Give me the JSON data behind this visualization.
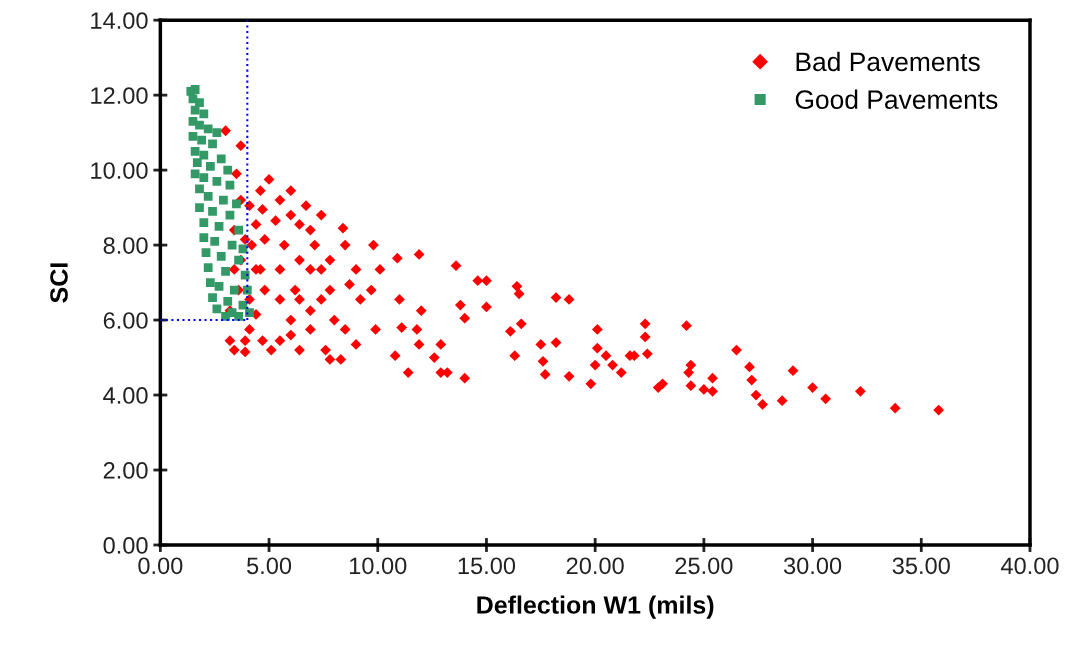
{
  "chart_data": {
    "type": "scatter",
    "xlabel": "Deflection W1 (mils)",
    "ylabel": "SCI",
    "xlim": [
      0,
      40
    ],
    "ylim": [
      0,
      14
    ],
    "xticks": [
      {
        "value": 0,
        "label": "0.00"
      },
      {
        "value": 5,
        "label": "5.00"
      },
      {
        "value": 10,
        "label": "10.00"
      },
      {
        "value": 15,
        "label": "15.00"
      },
      {
        "value": 20,
        "label": "20.00"
      },
      {
        "value": 25,
        "label": "25.00"
      },
      {
        "value": 30,
        "label": "30.00"
      },
      {
        "value": 35,
        "label": "35.00"
      },
      {
        "value": 40,
        "label": "40.00"
      }
    ],
    "yticks": [
      {
        "value": 0,
        "label": "0.00"
      },
      {
        "value": 2,
        "label": "2.00"
      },
      {
        "value": 4,
        "label": "4.00"
      },
      {
        "value": 6,
        "label": "6.00"
      },
      {
        "value": 8,
        "label": "8.00"
      },
      {
        "value": 10,
        "label": "10.00"
      },
      {
        "value": 12,
        "label": "12.00"
      },
      {
        "value": 14,
        "label": "14.00"
      }
    ],
    "grid": false,
    "legend": "top right",
    "ref_lines": [
      {
        "axis": "x",
        "value": 4,
        "color": "#0000ff",
        "line_style": "dotted"
      },
      {
        "axis": "y",
        "value": 6,
        "color": "#0000ff",
        "line_style": "dotted"
      }
    ],
    "series": [
      {
        "name": "Bad Pavements",
        "color": "#ff0000",
        "marker": "diamond",
        "x": [
          35.8,
          33.8,
          32.2,
          30.6,
          30.0,
          29.1,
          28.6,
          27.7,
          27.4,
          27.2,
          27.1,
          26.5,
          25.4,
          25.4,
          25.0,
          24.4,
          24.3,
          24.2,
          24.4,
          23.1,
          22.9,
          22.4,
          22.3,
          22.3,
          21.8,
          21.2,
          21.6,
          20.8,
          20.5,
          20.1,
          20.1,
          19.8,
          20.0,
          18.8,
          18.8,
          18.2,
          18.2,
          17.6,
          17.7,
          17.5,
          16.6,
          16.4,
          16.5,
          16.1,
          16.3,
          15.0,
          15.0,
          14.6,
          14.0,
          13.8,
          13.6,
          12.9,
          12.6,
          11.9,
          11.8,
          12.0,
          11.9,
          10.9,
          11.0,
          11.1,
          11.4,
          10.8,
          12.9,
          13.2,
          14.0,
          9.9,
          9.8,
          9.2,
          9.0,
          8.4,
          8.7,
          8.0,
          7.8,
          8.3,
          7.6,
          8.5,
          7.4,
          6.9,
          6.4,
          6.2,
          6.0,
          5.5,
          5.1,
          4.7,
          4.4,
          4.1,
          3.9,
          3.4,
          3.9,
          5.0,
          5.5,
          6.0,
          6.4,
          5.3,
          4.6,
          4.8,
          5.7,
          7.1,
          6.9,
          7.4,
          5.5,
          4.6,
          4.8,
          6.4,
          6.9,
          5.5,
          7.8,
          4.4,
          3.7,
          3.0,
          3.5,
          3.7,
          3.7,
          3.6,
          3.2,
          6.4,
          6.9,
          6.0,
          9.7,
          10.1,
          7.8,
          8.5,
          9.0,
          4.1,
          4.4,
          4.2,
          4.1,
          4.7,
          6.0,
          6.7,
          7.4,
          3.9,
          3.4,
          3.4,
          3.2
        ],
        "values": [
          3.6,
          3.65,
          4.1,
          3.9,
          4.2,
          4.65,
          3.85,
          3.75,
          4.0,
          4.4,
          4.75,
          5.2,
          4.1,
          4.45,
          4.15,
          4.25,
          4.6,
          5.85,
          4.8,
          4.3,
          4.2,
          5.1,
          5.9,
          5.55,
          5.05,
          4.6,
          5.05,
          4.8,
          5.05,
          5.25,
          5.75,
          4.3,
          4.8,
          4.5,
          6.55,
          6.6,
          5.4,
          4.9,
          4.55,
          5.35,
          5.9,
          6.9,
          6.7,
          5.7,
          5.05,
          6.35,
          7.05,
          7.05,
          6.05,
          6.4,
          7.45,
          5.35,
          5.0,
          5.35,
          5.75,
          6.25,
          7.75,
          7.65,
          6.55,
          5.8,
          4.6,
          5.05,
          4.6,
          4.6,
          4.45,
          5.75,
          8.0,
          6.55,
          5.35,
          8.45,
          6.95,
          6.0,
          4.95,
          4.95,
          5.2,
          5.75,
          6.55,
          7.35,
          7.6,
          6.8,
          6.0,
          5.45,
          5.2,
          5.45,
          6.15,
          5.75,
          5.45,
          5.2,
          5.15,
          9.75,
          9.2,
          8.8,
          8.55,
          8.65,
          9.45,
          8.15,
          8.0,
          8.0,
          8.4,
          7.35,
          7.35,
          7.35,
          6.8,
          6.55,
          6.25,
          6.55,
          6.8,
          8.55,
          10.65,
          11.05,
          9.9,
          9.2,
          7.6,
          6.8,
          6.25,
          5.2,
          5.75,
          5.6,
          6.8,
          7.35,
          7.6,
          8.0,
          7.35,
          6.55,
          7.35,
          8.0,
          9.05,
          8.95,
          9.45,
          9.05,
          8.8,
          8.15,
          8.4,
          7.35,
          5.45
        ]
      },
      {
        "name": "Good Pavements",
        "color": "#339966",
        "marker": "square",
        "x": [
          1.4,
          1.6,
          1.5,
          1.8,
          1.6,
          2.0,
          1.5,
          1.8,
          2.2,
          2.6,
          1.5,
          1.9,
          2.4,
          1.6,
          2.0,
          2.8,
          1.7,
          2.3,
          3.1,
          1.6,
          2.0,
          2.6,
          3.2,
          1.8,
          2.2,
          2.9,
          3.5,
          1.8,
          2.4,
          3.2,
          2.0,
          2.7,
          3.6,
          2.0,
          2.5,
          3.3,
          3.8,
          2.1,
          2.8,
          3.6,
          2.2,
          3.0,
          3.9,
          2.3,
          2.7,
          3.4,
          4.0,
          2.4,
          3.1,
          3.8,
          2.6,
          3.3,
          4.1,
          3.0,
          3.6
        ],
        "values": [
          12.1,
          12.15,
          11.9,
          11.8,
          11.6,
          11.5,
          11.3,
          11.2,
          11.1,
          11.0,
          10.9,
          10.8,
          10.7,
          10.5,
          10.4,
          10.3,
          10.2,
          10.1,
          10.0,
          9.9,
          9.8,
          9.7,
          9.6,
          9.5,
          9.3,
          9.2,
          9.1,
          9.0,
          8.9,
          8.8,
          8.6,
          8.5,
          8.4,
          8.2,
          8.1,
          8.0,
          7.9,
          7.8,
          7.7,
          7.6,
          7.4,
          7.3,
          7.2,
          7.0,
          6.9,
          6.8,
          6.8,
          6.6,
          6.5,
          6.4,
          6.3,
          6.2,
          6.2,
          6.1,
          6.1
        ]
      }
    ]
  }
}
